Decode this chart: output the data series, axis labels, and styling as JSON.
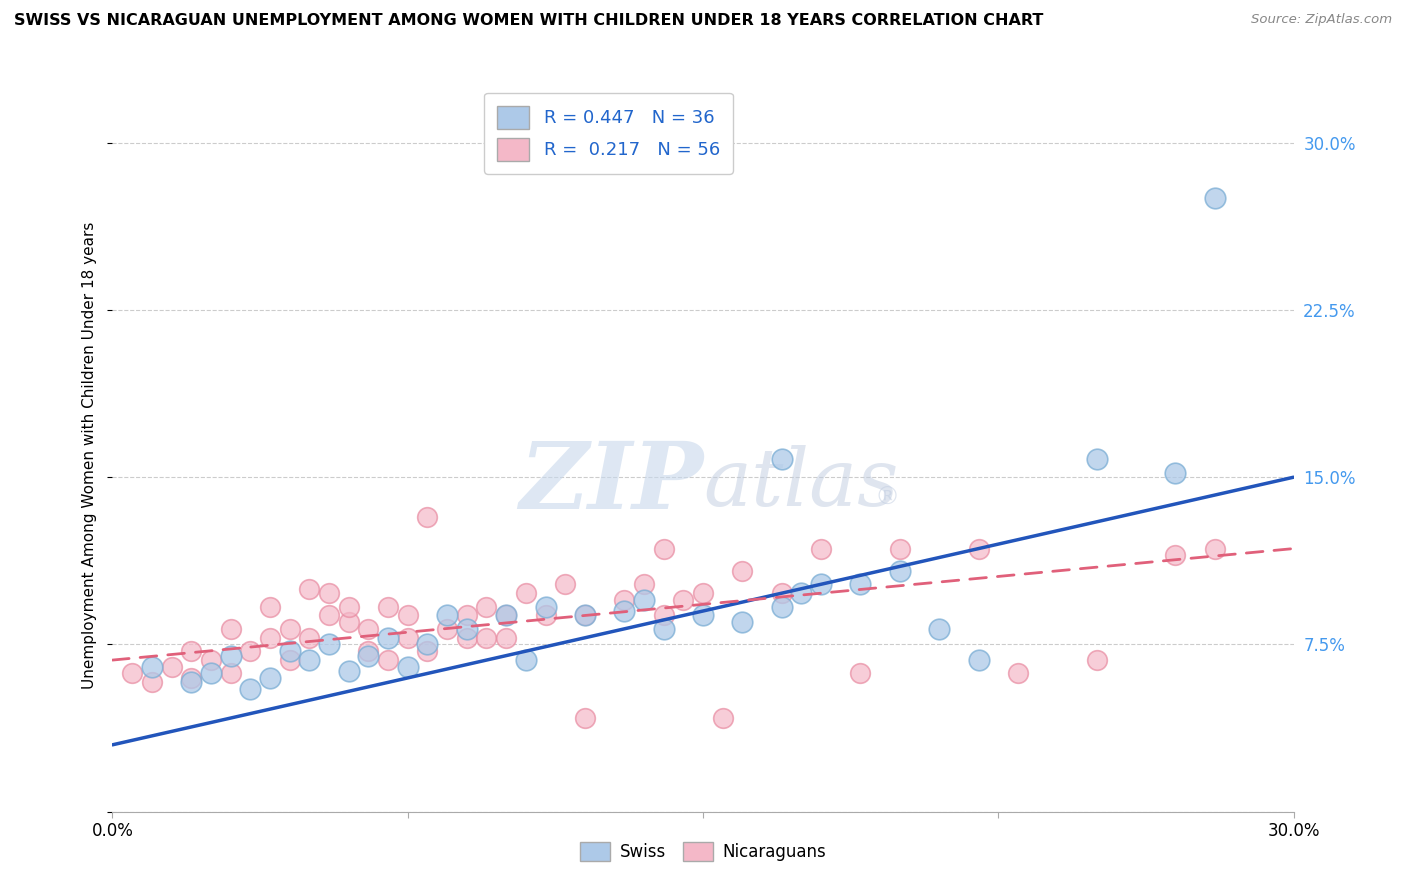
{
  "title": "SWISS VS NICARAGUAN UNEMPLOYMENT AMONG WOMEN WITH CHILDREN UNDER 18 YEARS CORRELATION CHART",
  "source": "Source: ZipAtlas.com",
  "ylabel": "Unemployment Among Women with Children Under 18 years",
  "xlim": [
    0.0,
    0.3
  ],
  "ylim": [
    0.0,
    0.32
  ],
  "yticks": [
    0.0,
    0.075,
    0.15,
    0.225,
    0.3
  ],
  "ytick_labels": [
    "",
    "7.5%",
    "15.0%",
    "22.5%",
    "30.0%"
  ],
  "swiss_R": 0.447,
  "swiss_N": 36,
  "nicaraguan_R": 0.217,
  "nicaraguan_N": 56,
  "swiss_color": "#adc9e8",
  "swiss_edge_color": "#7aadd4",
  "nicaraguan_color": "#f4b8c8",
  "nicaraguan_edge_color": "#e88aa0",
  "swiss_line_color": "#2255bb",
  "nicaraguan_line_color": "#e0607a",
  "swiss_scatter": [
    [
      0.01,
      0.065
    ],
    [
      0.02,
      0.058
    ],
    [
      0.025,
      0.062
    ],
    [
      0.03,
      0.07
    ],
    [
      0.035,
      0.055
    ],
    [
      0.04,
      0.06
    ],
    [
      0.045,
      0.072
    ],
    [
      0.05,
      0.068
    ],
    [
      0.055,
      0.075
    ],
    [
      0.06,
      0.063
    ],
    [
      0.065,
      0.07
    ],
    [
      0.07,
      0.078
    ],
    [
      0.075,
      0.065
    ],
    [
      0.08,
      0.075
    ],
    [
      0.085,
      0.088
    ],
    [
      0.09,
      0.082
    ],
    [
      0.1,
      0.088
    ],
    [
      0.105,
      0.068
    ],
    [
      0.11,
      0.092
    ],
    [
      0.12,
      0.088
    ],
    [
      0.13,
      0.09
    ],
    [
      0.135,
      0.095
    ],
    [
      0.14,
      0.082
    ],
    [
      0.15,
      0.088
    ],
    [
      0.16,
      0.085
    ],
    [
      0.17,
      0.092
    ],
    [
      0.175,
      0.098
    ],
    [
      0.18,
      0.102
    ],
    [
      0.19,
      0.102
    ],
    [
      0.2,
      0.108
    ],
    [
      0.21,
      0.082
    ],
    [
      0.22,
      0.068
    ],
    [
      0.17,
      0.158
    ],
    [
      0.25,
      0.158
    ],
    [
      0.27,
      0.152
    ],
    [
      0.28,
      0.275
    ]
  ],
  "nicaraguan_scatter": [
    [
      0.005,
      0.062
    ],
    [
      0.01,
      0.058
    ],
    [
      0.015,
      0.065
    ],
    [
      0.02,
      0.06
    ],
    [
      0.02,
      0.072
    ],
    [
      0.025,
      0.068
    ],
    [
      0.03,
      0.062
    ],
    [
      0.03,
      0.082
    ],
    [
      0.035,
      0.072
    ],
    [
      0.04,
      0.078
    ],
    [
      0.04,
      0.092
    ],
    [
      0.045,
      0.082
    ],
    [
      0.045,
      0.068
    ],
    [
      0.05,
      0.078
    ],
    [
      0.05,
      0.1
    ],
    [
      0.055,
      0.098
    ],
    [
      0.055,
      0.088
    ],
    [
      0.06,
      0.085
    ],
    [
      0.06,
      0.092
    ],
    [
      0.065,
      0.072
    ],
    [
      0.065,
      0.082
    ],
    [
      0.07,
      0.068
    ],
    [
      0.07,
      0.092
    ],
    [
      0.075,
      0.078
    ],
    [
      0.075,
      0.088
    ],
    [
      0.08,
      0.072
    ],
    [
      0.08,
      0.132
    ],
    [
      0.085,
      0.082
    ],
    [
      0.09,
      0.078
    ],
    [
      0.09,
      0.088
    ],
    [
      0.095,
      0.092
    ],
    [
      0.095,
      0.078
    ],
    [
      0.1,
      0.078
    ],
    [
      0.1,
      0.088
    ],
    [
      0.105,
      0.098
    ],
    [
      0.11,
      0.088
    ],
    [
      0.115,
      0.102
    ],
    [
      0.12,
      0.042
    ],
    [
      0.12,
      0.088
    ],
    [
      0.13,
      0.095
    ],
    [
      0.135,
      0.102
    ],
    [
      0.14,
      0.088
    ],
    [
      0.14,
      0.118
    ],
    [
      0.145,
      0.095
    ],
    [
      0.15,
      0.098
    ],
    [
      0.155,
      0.042
    ],
    [
      0.16,
      0.108
    ],
    [
      0.17,
      0.098
    ],
    [
      0.18,
      0.118
    ],
    [
      0.19,
      0.062
    ],
    [
      0.2,
      0.118
    ],
    [
      0.22,
      0.118
    ],
    [
      0.23,
      0.062
    ],
    [
      0.25,
      0.068
    ],
    [
      0.27,
      0.115
    ],
    [
      0.28,
      0.118
    ]
  ],
  "swiss_trend_x": [
    0.0,
    0.3
  ],
  "swiss_trend_y": [
    0.03,
    0.15
  ],
  "nicaraguan_trend_x": [
    0.0,
    0.3
  ],
  "nicaraguan_trend_y": [
    0.068,
    0.118
  ]
}
